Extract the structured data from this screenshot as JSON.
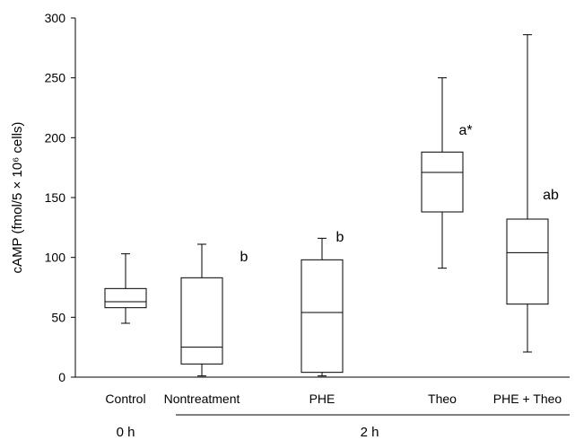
{
  "chart_data": {
    "type": "box",
    "categories": [
      "Control",
      "Nontreatment",
      "PHE",
      "Theo",
      "PHE + Theo"
    ],
    "boxes": [
      {
        "category": "Control",
        "min": 45,
        "q1": 58,
        "median": 63,
        "q3": 74,
        "max": 103,
        "annotation": ""
      },
      {
        "category": "Nontreatment",
        "min": 1,
        "q1": 11,
        "median": 25,
        "q3": 83,
        "max": 111,
        "annotation": "b"
      },
      {
        "category": "PHE",
        "min": 1,
        "q1": 4,
        "median": 54,
        "q3": 98,
        "max": 116,
        "annotation": "b"
      },
      {
        "category": "Theo",
        "min": 91,
        "q1": 138,
        "median": 171,
        "q3": 188,
        "max": 250,
        "annotation": "a*"
      },
      {
        "category": "PHE + Theo",
        "min": 21,
        "q1": 61,
        "median": 104,
        "q3": 132,
        "max": 286,
        "annotation": "ab"
      }
    ],
    "ylabel": "cAMP (fmol/5 × 10⁶ cells)",
    "xlabel": "",
    "title": "",
    "ylim": [
      0,
      300
    ],
    "yticks": [
      0,
      50,
      100,
      150,
      200,
      250,
      300
    ],
    "time_groups": [
      {
        "label": "0 h",
        "categories": [
          "Control"
        ]
      },
      {
        "label": "2 h",
        "categories": [
          "Nontreatment",
          "PHE",
          "Theo",
          "PHE + Theo"
        ]
      }
    ],
    "grid": false,
    "legend": "none"
  }
}
